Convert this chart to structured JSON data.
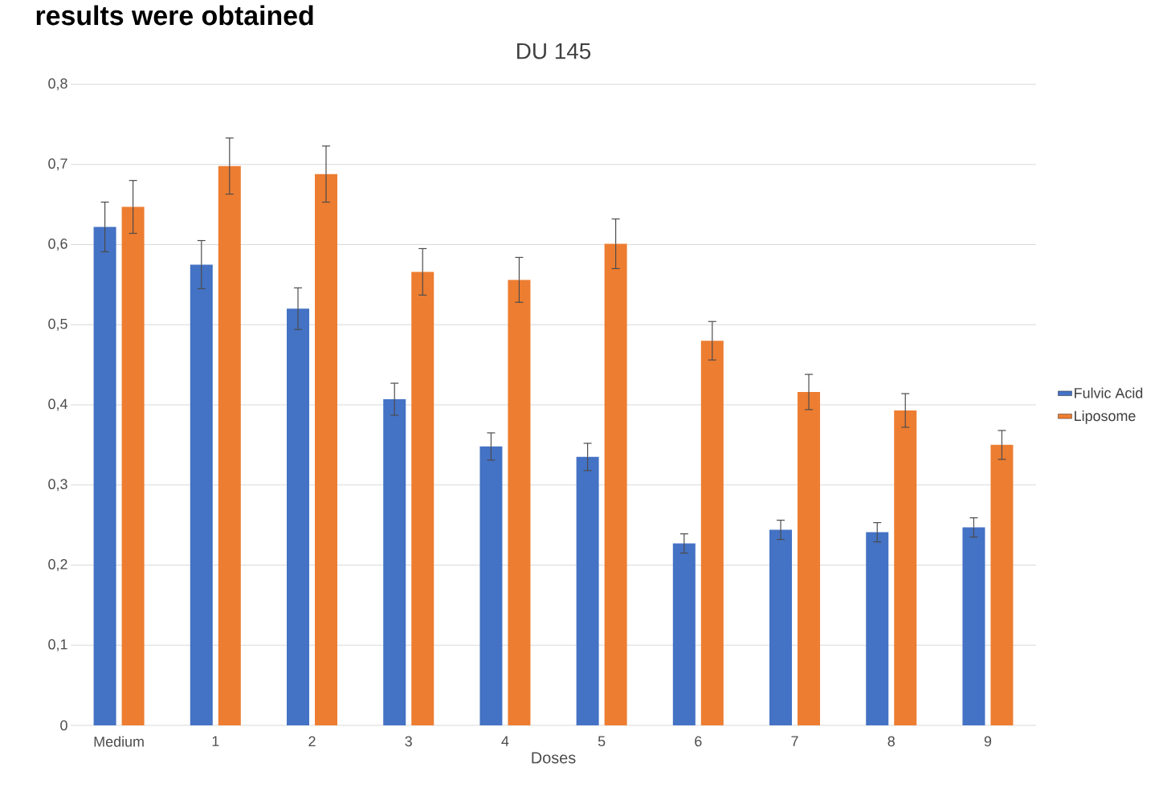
{
  "chart_data": {
    "type": "bar",
    "title": "DU 145",
    "xlabel": "Doses",
    "annotations": [
      "results were obtained"
    ],
    "categories": [
      "Medium",
      "1",
      "2",
      "3",
      "4",
      "5",
      "6",
      "7",
      "8",
      "9"
    ],
    "series": [
      {
        "name": "Fulvic Acid",
        "color": "#4472c4",
        "values": [
          0.622,
          0.575,
          0.52,
          0.407,
          0.348,
          0.335,
          0.227,
          0.244,
          0.241,
          0.247
        ],
        "errors": [
          0.031,
          0.03,
          0.026,
          0.02,
          0.017,
          0.017,
          0.012,
          0.012,
          0.012,
          0.012
        ]
      },
      {
        "name": "Liposome",
        "color": "#ed7d31",
        "values": [
          0.647,
          0.698,
          0.688,
          0.566,
          0.556,
          0.601,
          0.48,
          0.416,
          0.393,
          0.35
        ],
        "errors": [
          0.033,
          0.035,
          0.035,
          0.029,
          0.028,
          0.031,
          0.024,
          0.022,
          0.021,
          0.018
        ]
      }
    ],
    "ylim": [
      0,
      0.8
    ],
    "yticks": [
      0,
      {
        "value": 0.1,
        "label": "0,1"
      },
      {
        "value": 0.2,
        "label": "0,2"
      },
      {
        "value": 0.3,
        "label": "0,3"
      },
      {
        "value": 0.4,
        "label": "0,4"
      },
      {
        "value": 0.5,
        "label": "0,5"
      },
      {
        "value": 0.6,
        "label": "0,6"
      },
      {
        "value": 0.7,
        "label": "0,7"
      },
      {
        "value": 0.8,
        "label": "0,8"
      }
    ],
    "grid": "y",
    "legend": "right"
  }
}
